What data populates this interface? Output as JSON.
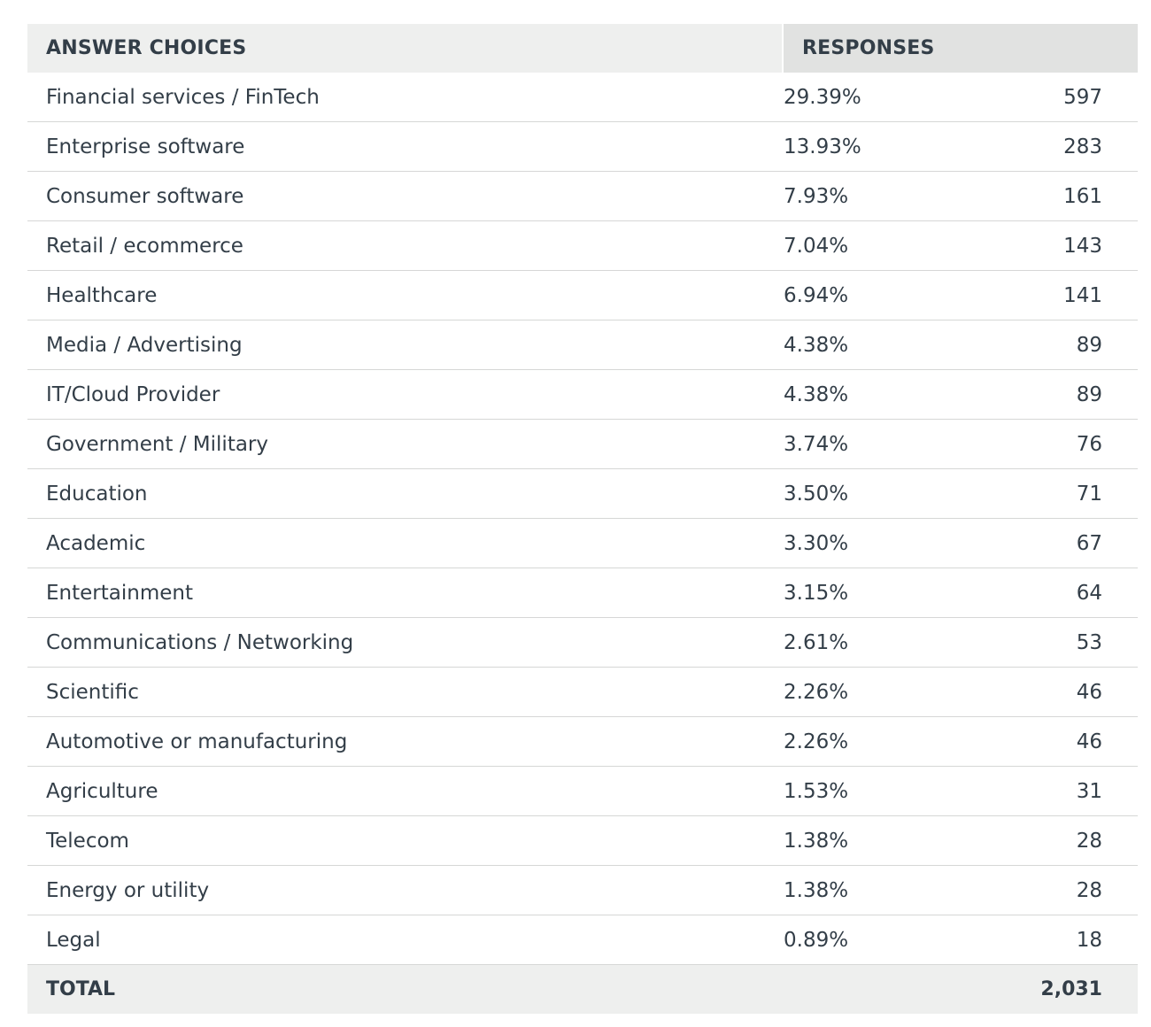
{
  "table": {
    "headers": {
      "choices": "ANSWER CHOICES",
      "responses": "RESPONSES"
    },
    "rows": [
      {
        "choice": "Financial services / FinTech",
        "percent": "29.39%",
        "count": "597"
      },
      {
        "choice": "Enterprise software",
        "percent": "13.93%",
        "count": "283"
      },
      {
        "choice": "Consumer software",
        "percent": "7.93%",
        "count": "161"
      },
      {
        "choice": "Retail / ecommerce",
        "percent": "7.04%",
        "count": "143"
      },
      {
        "choice": "Healthcare",
        "percent": "6.94%",
        "count": "141"
      },
      {
        "choice": "Media / Advertising",
        "percent": "4.38%",
        "count": "89"
      },
      {
        "choice": "IT/Cloud Provider",
        "percent": "4.38%",
        "count": "89"
      },
      {
        "choice": "Government / Military",
        "percent": "3.74%",
        "count": "76"
      },
      {
        "choice": "Education",
        "percent": "3.50%",
        "count": "71"
      },
      {
        "choice": "Academic",
        "percent": "3.30%",
        "count": "67"
      },
      {
        "choice": "Entertainment",
        "percent": "3.15%",
        "count": "64"
      },
      {
        "choice": "Communications / Networking",
        "percent": "2.61%",
        "count": "53"
      },
      {
        "choice": "Scientific",
        "percent": "2.26%",
        "count": "46"
      },
      {
        "choice": "Automotive or manufacturing",
        "percent": "2.26%",
        "count": "46"
      },
      {
        "choice": "Agriculture",
        "percent": "1.53%",
        "count": "31"
      },
      {
        "choice": "Telecom",
        "percent": "1.38%",
        "count": "28"
      },
      {
        "choice": "Energy or utility",
        "percent": "1.38%",
        "count": "28"
      },
      {
        "choice": "Legal",
        "percent": "0.89%",
        "count": "18"
      }
    ],
    "footer": {
      "label": "TOTAL",
      "total": "2,031"
    }
  }
}
